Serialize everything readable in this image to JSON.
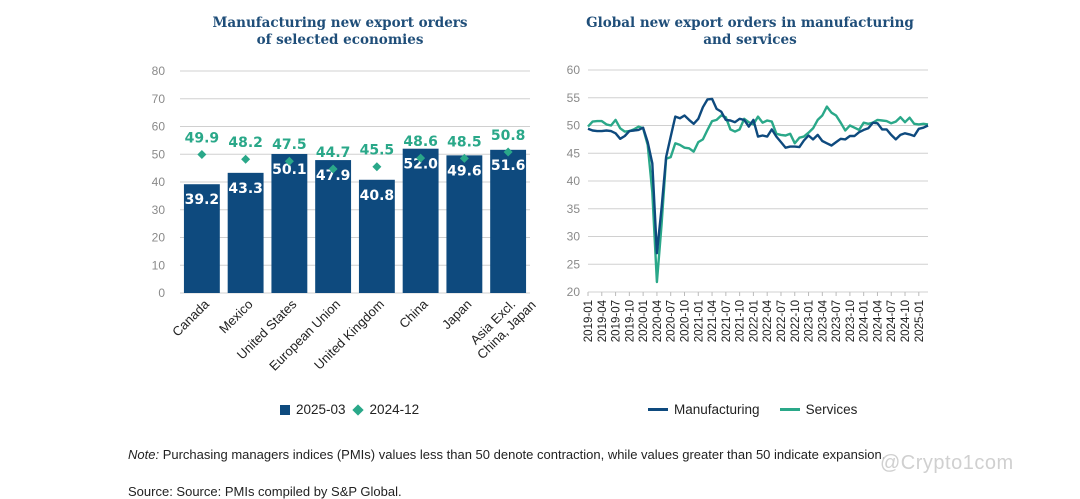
{
  "charts": [
    {
      "id": "left",
      "title_line1": "Manufacturing new export orders",
      "title_line2": "of selected economies"
    },
    {
      "id": "right",
      "title_line1": "Global new export orders in manufacturing",
      "title_line2": "and services"
    }
  ],
  "legend_left": {
    "bar": "2025-03",
    "diamond": "2024-12"
  },
  "legend_right": {
    "line1": "Manufacturing",
    "line2": "Services"
  },
  "colors": {
    "bar": "#0e4a7e",
    "diamond": "#2aa889",
    "manufacturing": "#0e4a7e",
    "services": "#2aa889",
    "grid": "#d0d0d0"
  },
  "note_label": "Note:",
  "note_text": " Purchasing managers indices (PMIs) values less than 50 denote contraction, while values greater than 50 indicate expansion.",
  "source_text": "Source: Source: PMIs compiled by S&P Global.",
  "watermark": "@Crypto1com",
  "chart_data": [
    {
      "type": "bar",
      "title": "Manufacturing new export orders of selected economies",
      "categories": [
        "Canada",
        "Mexico",
        "United States",
        "European Union",
        "United Kingdom",
        "China",
        "Japan",
        "Asia Excl. China, Japan"
      ],
      "series": [
        {
          "name": "2025-03",
          "kind": "bar",
          "values": [
            39.2,
            43.3,
            50.1,
            47.9,
            40.8,
            52.0,
            49.6,
            51.6
          ]
        },
        {
          "name": "2024-12",
          "kind": "diamond",
          "values": [
            49.9,
            48.2,
            47.5,
            44.7,
            45.5,
            48.6,
            48.5,
            50.8
          ]
        }
      ],
      "ylim": [
        0,
        80
      ],
      "yticks": [
        0,
        10,
        20,
        30,
        40,
        50,
        60,
        70,
        80
      ],
      "grid": true,
      "legend": "bottom"
    },
    {
      "type": "line",
      "title": "Global new export orders in manufacturing and services",
      "x_start": "2019-01",
      "x_end": "2025-03",
      "xticks": [
        "2019-01",
        "2019-04",
        "2019-07",
        "2019-10",
        "2020-01",
        "2020-04",
        "2020-07",
        "2020-10",
        "2021-01",
        "2021-04",
        "2021-07",
        "2021-10",
        "2022-01",
        "2022-04",
        "2022-07",
        "2022-10",
        "2023-01",
        "2023-04",
        "2023-07",
        "2023-10",
        "2024-01",
        "2024-04",
        "2024-07",
        "2024-10",
        "2025-01"
      ],
      "ylim": [
        20,
        60
      ],
      "yticks": [
        20,
        25,
        30,
        35,
        40,
        45,
        50,
        55,
        60
      ],
      "grid": true,
      "legend": "bottom",
      "series": [
        {
          "name": "Manufacturing",
          "values": [
            49.4,
            49.1,
            49.0,
            49.0,
            49.1,
            49.0,
            48.6,
            47.6,
            48.1,
            49.0,
            49.1,
            49.2,
            49.6,
            47.0,
            43.2,
            27.0,
            35.0,
            44.3,
            48.0,
            51.6,
            51.3,
            51.8,
            51.0,
            50.3,
            51.2,
            53.3,
            54.7,
            54.8,
            53.0,
            52.5,
            51.0,
            50.9,
            50.6,
            51.2,
            51.0,
            49.8,
            51.0,
            48.0,
            48.2,
            48.0,
            49.3,
            48.0,
            47.0,
            46.0,
            46.2,
            46.2,
            46.1,
            47.3,
            48.2,
            47.5,
            48.3,
            47.2,
            46.8,
            46.4,
            47.0,
            47.6,
            47.5,
            48.1,
            48.1,
            48.8,
            49.2,
            49.5,
            50.5,
            50.4,
            49.3,
            49.3,
            48.3,
            47.5,
            48.3,
            48.6,
            48.4,
            48.1,
            49.4,
            49.6,
            50.0
          ]
        },
        {
          "name": "Services",
          "values": [
            49.8,
            50.7,
            50.8,
            50.8,
            50.2,
            50.0,
            51.0,
            49.5,
            48.9,
            49.0,
            49.3,
            49.8,
            49.5,
            46.5,
            38.0,
            21.8,
            32.0,
            44.0,
            44.3,
            46.8,
            46.5,
            46.0,
            45.9,
            45.3,
            47.0,
            47.5,
            49.2,
            50.8,
            51.0,
            51.8,
            51.5,
            49.3,
            48.9,
            49.3,
            51.2,
            50.6,
            50.2,
            51.6,
            50.5,
            50.9,
            50.7,
            48.5,
            48.3,
            48.2,
            48.5,
            46.8,
            47.8,
            48.0,
            48.7,
            49.5,
            51.0,
            51.8,
            53.4,
            52.3,
            51.8,
            50.5,
            49.1,
            50.0,
            49.6,
            49.2,
            50.5,
            50.3,
            50.5,
            51.0,
            50.9,
            50.8,
            50.4,
            50.7,
            51.5,
            50.6,
            51.4,
            50.3,
            50.2,
            50.3,
            50.2
          ]
        }
      ]
    }
  ]
}
